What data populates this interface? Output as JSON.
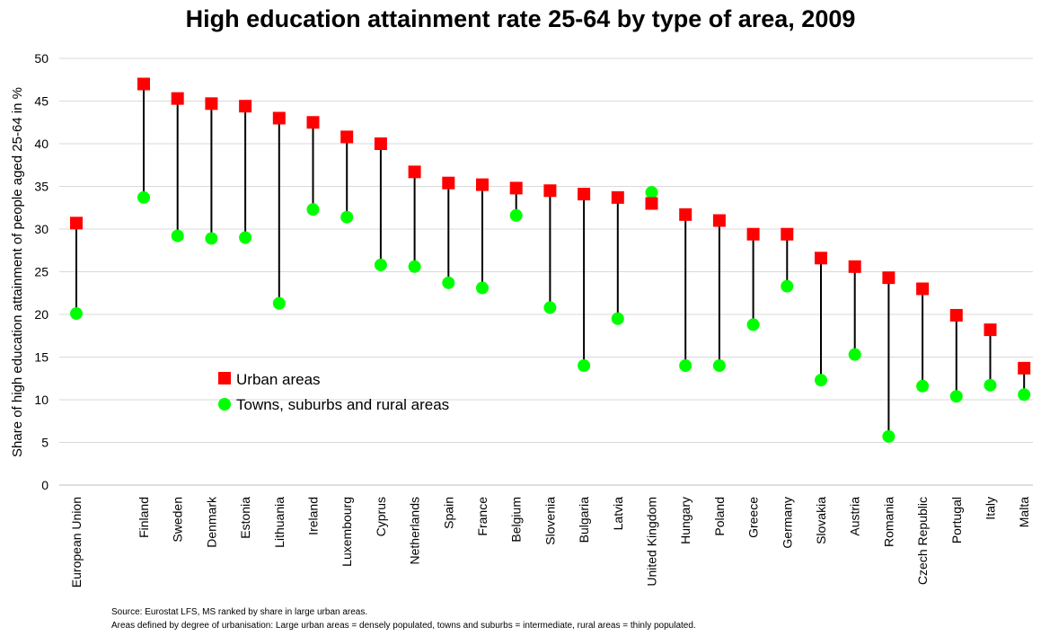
{
  "title": "High education attainment rate 25-64 by type of area, 2009",
  "source_note": "Source: Eurostat LFS, MS ranked by share in large urban areas.",
  "definition_note": "Areas defined by degree of urbanisation: Large urban areas = densely populated, towns and suburbs = intermediate, rural areas = thinly populated.",
  "colors": {
    "urban": "#ff0000",
    "rural": "#00ff00",
    "connector": "#000000",
    "grid": "#d9d9d9"
  },
  "chart_data": {
    "type": "scatter",
    "title": "High education attainment rate 25-64 by type of area, 2009",
    "xlabel": "",
    "ylabel": "Share of high education attainment of people aged 25-64 in %",
    "ylim": [
      0,
      50
    ],
    "yticks": [
      0,
      5,
      10,
      15,
      20,
      25,
      30,
      35,
      40,
      45,
      50
    ],
    "grid": true,
    "legend_position": "left-bottom-inside",
    "categories": [
      "European Union",
      "Finland",
      "Sweden",
      "Denmark",
      "Estonia",
      "Lithuania",
      "Ireland",
      "Luxembourg",
      "Cyprus",
      "Netherlands",
      "Spain",
      "France",
      "Belgium",
      "Slovenia",
      "Bulgaria",
      "Latvia",
      "United Kingdom",
      "Hungary",
      "Poland",
      "Greece",
      "Germany",
      "Slovakia",
      "Austria",
      "Romania",
      "Czech Republic",
      "Portugal",
      "Italy",
      "Malta"
    ],
    "series": [
      {
        "name": "Urban areas",
        "marker": "square",
        "values": [
          30.7,
          47.0,
          45.3,
          44.7,
          44.4,
          43.0,
          42.5,
          40.8,
          40.0,
          36.7,
          35.4,
          35.2,
          34.8,
          34.5,
          34.1,
          33.7,
          33.0,
          31.7,
          31.0,
          29.4,
          29.4,
          26.6,
          25.6,
          24.3,
          23.0,
          19.9,
          18.2,
          13.7
        ]
      },
      {
        "name": "Towns, suburbs and rural areas",
        "marker": "circle",
        "values": [
          20.1,
          33.7,
          29.2,
          28.9,
          29.0,
          21.3,
          32.3,
          31.4,
          25.8,
          25.6,
          23.7,
          23.1,
          31.6,
          20.8,
          14.0,
          19.5,
          34.3,
          14.0,
          14.0,
          18.8,
          23.3,
          12.3,
          15.3,
          5.7,
          11.6,
          10.4,
          11.7,
          10.6
        ]
      }
    ]
  }
}
